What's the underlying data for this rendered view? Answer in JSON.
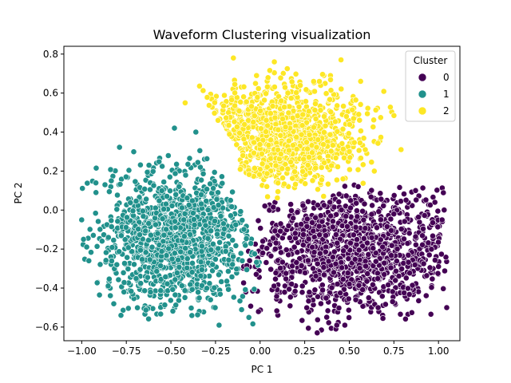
{
  "chart_data": {
    "type": "scatter",
    "title": "Waveform Clustering visualization",
    "xlabel": "PC 1",
    "ylabel": "PC 2",
    "xlim": [
      -1.1,
      1.12
    ],
    "ylim": [
      -0.67,
      0.84
    ],
    "x_ticks": [
      -1.0,
      -0.75,
      -0.5,
      -0.25,
      0.0,
      0.25,
      0.5,
      0.75,
      1.0
    ],
    "x_tick_labels": [
      "−1.00",
      "−0.75",
      "−0.50",
      "−0.25",
      "0.00",
      "0.25",
      "0.50",
      "0.75",
      "1.00"
    ],
    "y_ticks": [
      -0.6,
      -0.4,
      -0.2,
      0.0,
      0.2,
      0.4,
      0.6,
      0.8
    ],
    "y_tick_labels": [
      "−0.6",
      "−0.4",
      "−0.2",
      "0.0",
      "0.2",
      "0.4",
      "0.6",
      "0.8"
    ],
    "grid": false,
    "legend": {
      "title": "Cluster",
      "placement": "top-right",
      "entries": [
        "0",
        "1",
        "2"
      ]
    },
    "series": [
      {
        "name": "0",
        "color": "#440154",
        "region": {
          "center": [
            0.5,
            -0.2
          ],
          "spread": [
            0.28,
            0.16
          ],
          "x_range": [
            -0.1,
            1.05
          ],
          "y_range": [
            -0.63,
            0.13
          ]
        },
        "count": 1200,
        "sample_points": [
          [
            0.32,
            -0.63
          ],
          [
            1.02,
            -0.05
          ],
          [
            0.55,
            0.12
          ],
          [
            0.75,
            -0.02
          ],
          [
            -0.08,
            -0.42
          ],
          [
            0.43,
            -0.59
          ],
          [
            0.98,
            0.04
          ],
          [
            1.0,
            -0.29
          ]
        ]
      },
      {
        "name": "1",
        "color": "#21918c",
        "region": {
          "center": [
            -0.45,
            -0.15
          ],
          "spread": [
            0.22,
            0.17
          ],
          "x_range": [
            -1.0,
            0.0
          ],
          "y_range": [
            -0.6,
            0.42
          ]
        },
        "count": 1200,
        "sample_points": [
          [
            -1.0,
            -0.05
          ],
          [
            -0.96,
            -0.26
          ],
          [
            -0.48,
            0.42
          ],
          [
            -0.23,
            -0.59
          ],
          [
            -0.78,
            -0.54
          ],
          [
            -0.92,
            0.09
          ],
          [
            -0.36,
            0.4
          ],
          [
            -0.1,
            -0.26
          ]
        ]
      },
      {
        "name": "2",
        "color": "#fde725",
        "region": {
          "center": [
            0.12,
            0.38
          ],
          "spread": [
            0.22,
            0.13
          ],
          "x_range": [
            -0.42,
            0.8
          ],
          "y_range": [
            0.06,
            0.78
          ]
        },
        "count": 1100,
        "sample_points": [
          [
            -0.15,
            0.78
          ],
          [
            0.08,
            0.76
          ],
          [
            -0.42,
            0.55
          ],
          [
            0.79,
            0.31
          ],
          [
            0.64,
            0.2
          ],
          [
            0.3,
            0.66
          ],
          [
            0.5,
            0.3
          ],
          [
            -0.02,
            0.69
          ]
        ]
      }
    ]
  }
}
